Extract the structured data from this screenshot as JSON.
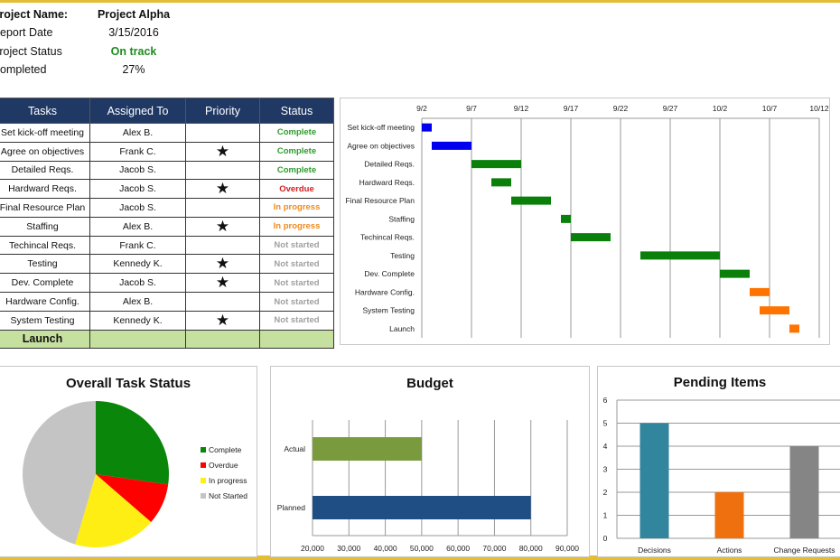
{
  "project": {
    "name_label": "Project Name:",
    "name": "Project Alpha",
    "date_label": "Report Date",
    "date": "3/15/2016",
    "status_label": "Project Status",
    "status": "On track",
    "status_color": "#1e8c1e",
    "completed_label": "Completed",
    "completed": "27%"
  },
  "table": {
    "headers": [
      "Tasks",
      "Assigned To",
      "Priority",
      "Status"
    ],
    "rows": [
      {
        "task": "Set kick-off meeting",
        "assigned": "Alex B.",
        "priority": "",
        "status": "Complete"
      },
      {
        "task": "Agree on objectives",
        "assigned": "Frank C.",
        "priority": "★",
        "status": "Complete"
      },
      {
        "task": "Detailed Reqs.",
        "assigned": "Jacob S.",
        "priority": "",
        "status": "Complete"
      },
      {
        "task": "Hardward Reqs.",
        "assigned": "Jacob S.",
        "priority": "★",
        "status": "Overdue"
      },
      {
        "task": "Final Resource Plan",
        "assigned": "Jacob S.",
        "priority": "",
        "status": "In progress"
      },
      {
        "task": "Staffing",
        "assigned": "Alex B.",
        "priority": "★",
        "status": "In progress"
      },
      {
        "task": "Techincal Reqs.",
        "assigned": "Frank C.",
        "priority": "",
        "status": "Not started"
      },
      {
        "task": "Testing",
        "assigned": "Kennedy K.",
        "priority": "★",
        "status": "Not started"
      },
      {
        "task": "Dev. Complete",
        "assigned": "Jacob S.",
        "priority": "★",
        "status": "Not started"
      },
      {
        "task": "Hardware Config.",
        "assigned": "Alex B.",
        "priority": "",
        "status": "Not started"
      },
      {
        "task": "System Testing",
        "assigned": "Kennedy K.",
        "priority": "★",
        "status": "Not started"
      }
    ],
    "launch": "Launch",
    "status_colors": {
      "Complete": "#2e9a2e",
      "Overdue": "#d42020",
      "In progress": "#f08a1c",
      "Not started": "#a0a0a0"
    }
  },
  "chart_data": [
    {
      "type": "gantt",
      "title": "",
      "x_ticks": [
        "9/2",
        "9/7",
        "9/12",
        "9/17",
        "9/22",
        "9/27",
        "10/2",
        "10/7",
        "10/12"
      ],
      "x_range_days": [
        0,
        40
      ],
      "start_date": "9/2",
      "tasks": [
        {
          "name": "Set kick-off meeting",
          "start": 0,
          "end": 1,
          "color": "#0000ee"
        },
        {
          "name": "Agree on objectives",
          "start": 1,
          "end": 5,
          "color": "#0000ee"
        },
        {
          "name": "Detailed Reqs.",
          "start": 5,
          "end": 10,
          "color": "#0a800a"
        },
        {
          "name": "Hardward Reqs.",
          "start": 7,
          "end": 9,
          "color": "#0a800a"
        },
        {
          "name": "Final Resource Plan",
          "start": 9,
          "end": 13,
          "color": "#0a800a"
        },
        {
          "name": "Staffing",
          "start": 14,
          "end": 15,
          "color": "#0a800a"
        },
        {
          "name": "Techincal Reqs.",
          "start": 15,
          "end": 19,
          "color": "#0a800a"
        },
        {
          "name": "Testing",
          "start": 22,
          "end": 30,
          "color": "#0a800a"
        },
        {
          "name": "Dev. Complete",
          "start": 30,
          "end": 33,
          "color": "#0a800a"
        },
        {
          "name": "Hardware Config.",
          "start": 33,
          "end": 35,
          "color": "#ff7400"
        },
        {
          "name": "System Testing",
          "start": 34,
          "end": 37,
          "color": "#ff7400"
        },
        {
          "name": "Launch",
          "start": 37,
          "end": 38,
          "color": "#ff7400"
        }
      ]
    },
    {
      "type": "pie",
      "title": "Overall Task Status",
      "legend": "right",
      "slices": [
        {
          "label": "Complete",
          "value": 3,
          "color": "#0a860a"
        },
        {
          "label": "Overdue",
          "value": 1,
          "color": "#ff0000"
        },
        {
          "label": "In progress",
          "value": 2,
          "color": "#ffee14"
        },
        {
          "label": "Not Started",
          "value": 5,
          "color": "#c4c4c4"
        }
      ]
    },
    {
      "type": "bar",
      "orientation": "horizontal",
      "title": "Budget",
      "categories": [
        "Actual",
        "Planned"
      ],
      "values": [
        50000,
        80000
      ],
      "colors": [
        "#7a9a3e",
        "#1f4e84"
      ],
      "xlim": [
        20000,
        90000
      ],
      "x_ticks": [
        "20,000",
        "30,000",
        "40,000",
        "50,000",
        "60,000",
        "70,000",
        "80,000",
        "90,000"
      ]
    },
    {
      "type": "bar",
      "title": "Pending Items",
      "categories": [
        "Decisions",
        "Actions",
        "Change Requests"
      ],
      "values": [
        5,
        2,
        4
      ],
      "colors": [
        "#31859c",
        "#ee700f",
        "#858585"
      ],
      "ylim": [
        0,
        6
      ],
      "y_ticks": [
        "0",
        "1",
        "2",
        "3",
        "4",
        "5",
        "6"
      ]
    }
  ]
}
